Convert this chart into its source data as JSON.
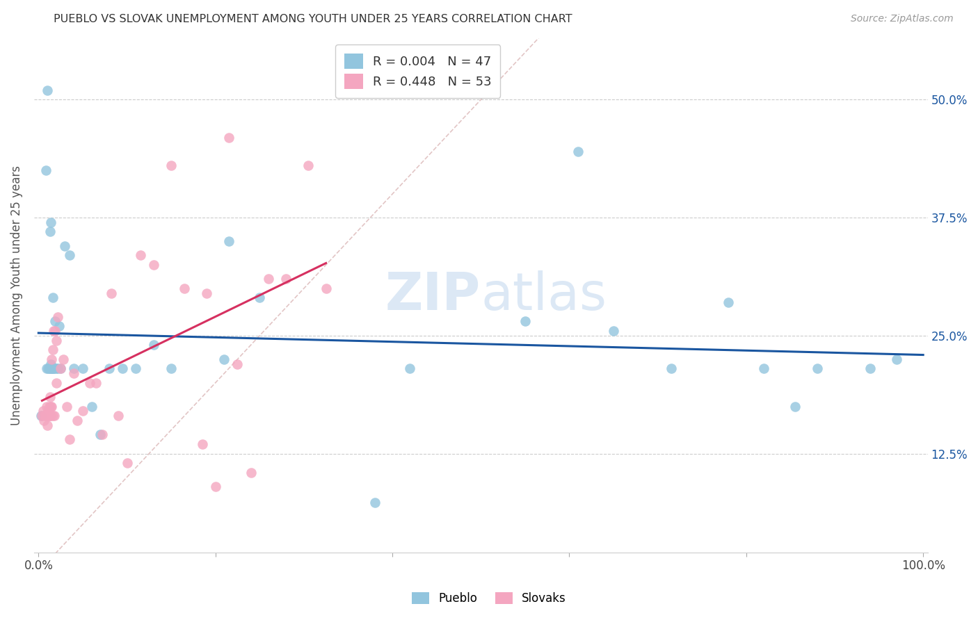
{
  "title": "PUEBLO VS SLOVAK UNEMPLOYMENT AMONG YOUTH UNDER 25 YEARS CORRELATION CHART",
  "source": "Source: ZipAtlas.com",
  "ylabel": "Unemployment Among Youth under 25 years",
  "xlim": [
    -0.005,
    1.005
  ],
  "ylim": [
    0.02,
    0.565
  ],
  "xticks": [
    0.0,
    0.2,
    0.4,
    0.6,
    0.8,
    1.0
  ],
  "xticklabels": [
    "0.0%",
    "",
    "",
    "",
    "",
    "100.0%"
  ],
  "ytick_positions": [
    0.125,
    0.25,
    0.375,
    0.5
  ],
  "yticklabels": [
    "12.5%",
    "25.0%",
    "37.5%",
    "50.0%"
  ],
  "legend_pueblo_R": "0.004",
  "legend_pueblo_N": "47",
  "legend_slovak_R": "0.448",
  "legend_slovak_N": "53",
  "pueblo_color": "#92c5de",
  "slovak_color": "#f4a6c0",
  "trendline_pueblo_color": "#1a56a0",
  "trendline_slovak_color": "#d63060",
  "diagonal_color": "#ddbbbb",
  "watermark_color": "#dce8f5",
  "background_color": "#ffffff",
  "grid_color": "#cccccc",
  "pueblo_x": [
    0.003,
    0.008,
    0.009,
    0.01,
    0.011,
    0.012,
    0.013,
    0.013,
    0.014,
    0.014,
    0.015,
    0.015,
    0.016,
    0.016,
    0.017,
    0.018,
    0.019,
    0.02,
    0.022,
    0.023,
    0.025,
    0.03,
    0.035,
    0.04,
    0.05,
    0.06,
    0.07,
    0.08,
    0.095,
    0.11,
    0.13,
    0.15,
    0.21,
    0.215,
    0.25,
    0.38,
    0.42,
    0.55,
    0.61,
    0.65,
    0.715,
    0.78,
    0.82,
    0.855,
    0.88,
    0.94,
    0.97
  ],
  "pueblo_y": [
    0.165,
    0.425,
    0.215,
    0.51,
    0.215,
    0.215,
    0.215,
    0.36,
    0.22,
    0.37,
    0.215,
    0.215,
    0.215,
    0.29,
    0.215,
    0.215,
    0.265,
    0.215,
    0.215,
    0.26,
    0.215,
    0.345,
    0.335,
    0.215,
    0.215,
    0.175,
    0.145,
    0.215,
    0.215,
    0.215,
    0.24,
    0.215,
    0.225,
    0.35,
    0.29,
    0.073,
    0.215,
    0.265,
    0.445,
    0.255,
    0.215,
    0.285,
    0.215,
    0.175,
    0.215,
    0.215,
    0.225
  ],
  "slovak_x": [
    0.004,
    0.005,
    0.006,
    0.007,
    0.008,
    0.009,
    0.009,
    0.01,
    0.01,
    0.011,
    0.012,
    0.012,
    0.013,
    0.013,
    0.014,
    0.014,
    0.015,
    0.015,
    0.016,
    0.016,
    0.017,
    0.018,
    0.019,
    0.02,
    0.02,
    0.022,
    0.025,
    0.028,
    0.032,
    0.035,
    0.04,
    0.044,
    0.05,
    0.058,
    0.065,
    0.072,
    0.082,
    0.09,
    0.1,
    0.115,
    0.13,
    0.15,
    0.165,
    0.185,
    0.19,
    0.2,
    0.215,
    0.225,
    0.24,
    0.26,
    0.28,
    0.305,
    0.325
  ],
  "slovak_y": [
    0.165,
    0.17,
    0.16,
    0.165,
    0.165,
    0.165,
    0.175,
    0.155,
    0.165,
    0.17,
    0.165,
    0.175,
    0.165,
    0.185,
    0.165,
    0.175,
    0.175,
    0.225,
    0.165,
    0.235,
    0.255,
    0.165,
    0.255,
    0.2,
    0.245,
    0.27,
    0.215,
    0.225,
    0.175,
    0.14,
    0.21,
    0.16,
    0.17,
    0.2,
    0.2,
    0.145,
    0.295,
    0.165,
    0.115,
    0.335,
    0.325,
    0.43,
    0.3,
    0.135,
    0.295,
    0.09,
    0.46,
    0.22,
    0.105,
    0.31,
    0.31,
    0.43,
    0.3
  ]
}
